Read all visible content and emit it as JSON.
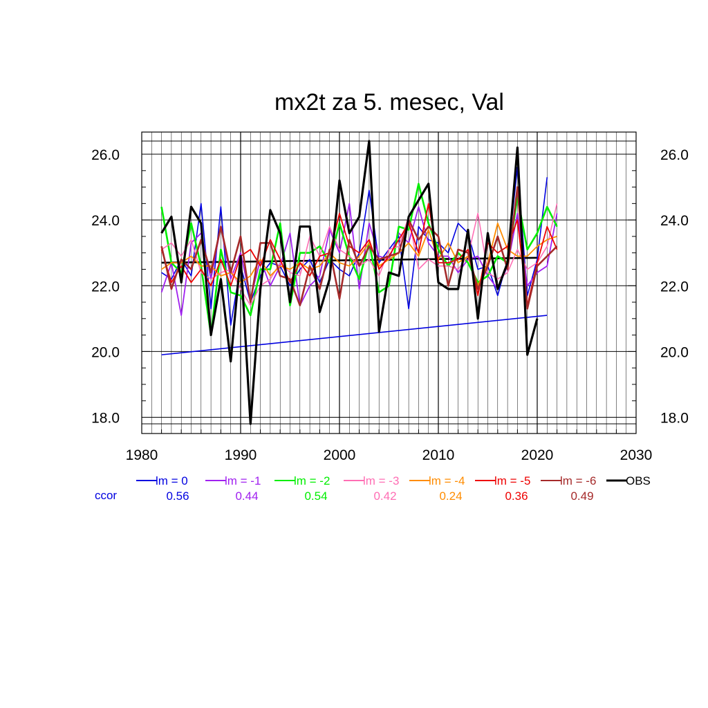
{
  "chart_data": {
    "type": "line",
    "title": "mx2t za 5. mesec, Val",
    "xlim": [
      1980,
      2030
    ],
    "ylim": [
      17.8,
      26.4
    ],
    "x_ticks": [
      1980,
      1990,
      2000,
      2010,
      2020,
      2030
    ],
    "y_ticks": [
      18.0,
      20.0,
      22.0,
      24.0,
      26.0
    ],
    "y_tick_labels": [
      "18.0",
      "20.0",
      "22.0",
      "24.0",
      "26.0"
    ],
    "grid": "vertical lines every year, horizontal lines at major ticks",
    "ccor_label": "ccor",
    "series": [
      {
        "name": "lm = 0",
        "color": "#0000e0",
        "ccor": "0.56",
        "width": 1.6,
        "x": [
          1982,
          1983,
          1984,
          1985,
          1986,
          1987,
          1988,
          1989,
          1990,
          1991,
          1992,
          1993,
          1994,
          1995,
          1996,
          1997,
          1998,
          1999,
          2000,
          2001,
          2002,
          2003,
          2004,
          2005,
          2006,
          2007,
          2008,
          2009,
          2010,
          2011,
          2012,
          2013,
          2014,
          2015,
          2016,
          2017,
          2018,
          2019,
          2020,
          2021
        ],
        "y": [
          22.4,
          22.2,
          22.8,
          22.3,
          24.5,
          21.3,
          24.4,
          20.8,
          22.6,
          21.5,
          22.3,
          22.7,
          22.6,
          22.0,
          22.5,
          22.8,
          22.1,
          22.8,
          22.5,
          22.3,
          23.0,
          24.9,
          22.7,
          23.1,
          23.5,
          21.3,
          23.8,
          23.4,
          23.3,
          23.0,
          23.9,
          23.6,
          22.5,
          22.6,
          21.7,
          22.8,
          25.6,
          21.7,
          22.8,
          25.3
        ]
      },
      {
        "name": "lm = -1",
        "color": "#a020f0",
        "ccor": "0.44",
        "width": 1.8,
        "x": [
          1982,
          1983,
          1984,
          1985,
          1986,
          1987,
          1988,
          1989,
          1990,
          1991,
          1992,
          1993,
          1994,
          1995,
          1996,
          1997,
          1998,
          1999,
          2000,
          2001,
          2002,
          2003,
          2004,
          2005,
          2006,
          2007,
          2008,
          2009,
          2010,
          2011,
          2012,
          2013,
          2014,
          2015,
          2016,
          2017,
          2018,
          2019,
          2020,
          2021,
          2022
        ],
        "y": [
          21.8,
          22.7,
          21.1,
          23.3,
          23.6,
          22.2,
          23.8,
          22.2,
          23.0,
          21.6,
          22.8,
          22.0,
          22.6,
          23.6,
          21.4,
          22.0,
          22.3,
          23.7,
          23.0,
          24.5,
          21.9,
          23.9,
          22.9,
          22.8,
          23.6,
          23.3,
          24.4,
          23.3,
          22.9,
          22.9,
          22.4,
          22.8,
          22.9,
          22.3,
          21.9,
          22.6,
          24.2,
          22.0,
          22.4,
          22.6,
          24.2
        ]
      },
      {
        "name": "lm = -2",
        "color": "#00ee00",
        "ccor": "0.54",
        "width": 2.6,
        "x": [
          1982,
          1983,
          1984,
          1985,
          1986,
          1987,
          1988,
          1989,
          1990,
          1991,
          1992,
          1993,
          1994,
          1995,
          1996,
          1997,
          1998,
          1999,
          2000,
          2001,
          2002,
          2003,
          2004,
          2005,
          2006,
          2007,
          2008,
          2009,
          2010,
          2011,
          2012,
          2013,
          2014,
          2015,
          2016,
          2017,
          2018,
          2019,
          2020,
          2021,
          2022
        ],
        "y": [
          24.4,
          22.7,
          22.4,
          23.9,
          22.6,
          20.5,
          23.1,
          21.8,
          21.7,
          21.1,
          22.5,
          22.5,
          23.9,
          21.4,
          23.0,
          23.0,
          23.2,
          22.7,
          23.9,
          22.9,
          22.2,
          23.3,
          21.8,
          22.0,
          23.8,
          23.7,
          25.1,
          23.9,
          23.1,
          22.6,
          23.0,
          22.7,
          22.1,
          22.3,
          22.9,
          22.7,
          24.7,
          23.1,
          23.6,
          24.4,
          23.8
        ]
      },
      {
        "name": "lm = -3",
        "color": "#ff6eb4",
        "ccor": "0.42",
        "width": 1.6,
        "x": [
          1982,
          1983,
          1984,
          1985,
          1986,
          1987,
          1988,
          1989,
          1990,
          1991,
          1992,
          1993,
          1994,
          1995,
          1996,
          1997,
          1998,
          1999,
          2000,
          2001,
          2002,
          2003,
          2004,
          2005,
          2006,
          2007,
          2008,
          2009,
          2010,
          2011,
          2012,
          2013,
          2014,
          2015,
          2016,
          2017,
          2018,
          2019,
          2020,
          2021,
          2022
        ],
        "y": [
          23.1,
          23.3,
          22.9,
          23.4,
          22.4,
          22.2,
          22.4,
          22.5,
          21.9,
          21.4,
          22.0,
          22.2,
          22.7,
          22.4,
          22.3,
          23.5,
          22.9,
          23.8,
          23.1,
          22.9,
          22.6,
          22.8,
          22.3,
          23.1,
          23.2,
          24.1,
          22.5,
          22.8,
          22.6,
          22.6,
          22.5,
          22.9,
          24.2,
          22.4,
          22.2,
          22.4,
          23.1,
          22.5,
          22.7,
          23.2,
          24.5
        ]
      },
      {
        "name": "lm = -4",
        "color": "#ff8c00",
        "ccor": "0.24",
        "width": 1.8,
        "x": [
          1982,
          1983,
          1984,
          1985,
          1986,
          1987,
          1988,
          1989,
          1990,
          1991,
          1992,
          1993,
          1994,
          1995,
          1996,
          1997,
          1998,
          1999,
          2000,
          2001,
          2002,
          2003,
          2004,
          2005,
          2006,
          2007,
          2008,
          2009,
          2010,
          2011,
          2012,
          2013,
          2014,
          2015,
          2016,
          2017,
          2018,
          2019,
          2020,
          2021,
          2022
        ],
        "y": [
          22.5,
          22.7,
          22.7,
          22.9,
          22.6,
          22.6,
          22.3,
          22.4,
          22.1,
          22.3,
          22.8,
          22.3,
          22.6,
          22.5,
          22.7,
          22.5,
          22.6,
          23.0,
          22.7,
          22.6,
          22.9,
          23.3,
          22.6,
          22.8,
          23.0,
          23.3,
          22.9,
          23.7,
          22.8,
          23.3,
          22.7,
          22.9,
          22.0,
          22.7,
          23.9,
          23.1,
          22.9,
          22.9,
          23.2,
          23.4,
          23.5
        ]
      },
      {
        "name": "lm = -5",
        "color": "#ee0000",
        "ccor": "0.36",
        "width": 1.8,
        "x": [
          1982,
          1983,
          1984,
          1985,
          1986,
          1987,
          1988,
          1989,
          1990,
          1991,
          1992,
          1993,
          1994,
          1995,
          1996,
          1997,
          1998,
          1999,
          2000,
          2001,
          2002,
          2003,
          2004,
          2005,
          2006,
          2007,
          2008,
          2009,
          2010,
          2011,
          2012,
          2013,
          2014,
          2015,
          2016,
          2017,
          2018,
          2019,
          2020,
          2021,
          2022
        ],
        "y": [
          23.1,
          22.1,
          22.6,
          22.1,
          22.5,
          22.0,
          22.8,
          22.0,
          22.9,
          23.1,
          22.6,
          23.4,
          22.8,
          22.1,
          22.7,
          22.3,
          22.9,
          23.0,
          24.2,
          23.2,
          23.0,
          23.4,
          22.5,
          22.9,
          23.4,
          23.9,
          23.0,
          24.5,
          22.7,
          22.7,
          22.8,
          23.1,
          21.7,
          23.3,
          23.0,
          23.2,
          24.0,
          21.4,
          22.7,
          23.8,
          23.1
        ]
      },
      {
        "name": "lm = -6",
        "color": "#a52a2a",
        "ccor": "0.49",
        "width": 2.6,
        "x": [
          1982,
          1983,
          1984,
          1985,
          1986,
          1987,
          1988,
          1989,
          1990,
          1991,
          1992,
          1993,
          1994,
          1995,
          1996,
          1997,
          1998,
          1999,
          2000,
          2001,
          2002,
          2003,
          2004,
          2005,
          2006,
          2007,
          2008,
          2009,
          2010,
          2011,
          2012,
          2013,
          2014,
          2015,
          2016,
          2017,
          2018,
          2019,
          2020,
          2021,
          2022
        ],
        "y": [
          23.2,
          21.9,
          22.8,
          22.5,
          23.4,
          22.4,
          23.8,
          22.4,
          23.5,
          21.5,
          23.3,
          23.3,
          22.3,
          22.2,
          21.4,
          22.6,
          21.9,
          23.1,
          21.6,
          23.4,
          22.6,
          23.2,
          22.8,
          22.9,
          23.0,
          24.0,
          23.4,
          23.8,
          23.5,
          22.0,
          23.1,
          23.0,
          21.9,
          22.6,
          23.5,
          22.5,
          25.0,
          21.3,
          22.6,
          22.9,
          23.2
        ]
      },
      {
        "name": "OBS",
        "color": "#000000",
        "ccor": "",
        "width": 3.2,
        "x": [
          1982,
          1983,
          1984,
          1985,
          1986,
          1987,
          1988,
          1989,
          1990,
          1991,
          1992,
          1993,
          1994,
          1995,
          1996,
          1997,
          1998,
          1999,
          2000,
          2001,
          2002,
          2003,
          2004,
          2005,
          2006,
          2007,
          2008,
          2009,
          2010,
          2011,
          2012,
          2013,
          2014,
          2015,
          2016,
          2017,
          2018,
          2019,
          2020
        ],
        "y": [
          23.6,
          24.1,
          22.1,
          24.4,
          23.9,
          20.5,
          22.2,
          19.7,
          22.9,
          17.8,
          21.9,
          24.3,
          23.6,
          21.5,
          23.8,
          23.8,
          21.2,
          22.2,
          25.2,
          23.6,
          24.1,
          26.4,
          20.6,
          22.4,
          22.3,
          24.1,
          24.6,
          25.1,
          22.1,
          21.9,
          21.9,
          23.7,
          21.0,
          23.6,
          21.9,
          22.7,
          26.2,
          19.9,
          21.0
        ]
      }
    ],
    "trend_lines": [
      {
        "series": "lm = 0",
        "color": "#0000e0",
        "x": [
          1982,
          2021
        ],
        "y": [
          19.9,
          21.1
        ],
        "width": 1.6
      },
      {
        "series": "OBS",
        "color": "#000000",
        "x": [
          1982,
          2020
        ],
        "y": [
          22.7,
          22.85
        ],
        "width": 2.6
      }
    ]
  }
}
